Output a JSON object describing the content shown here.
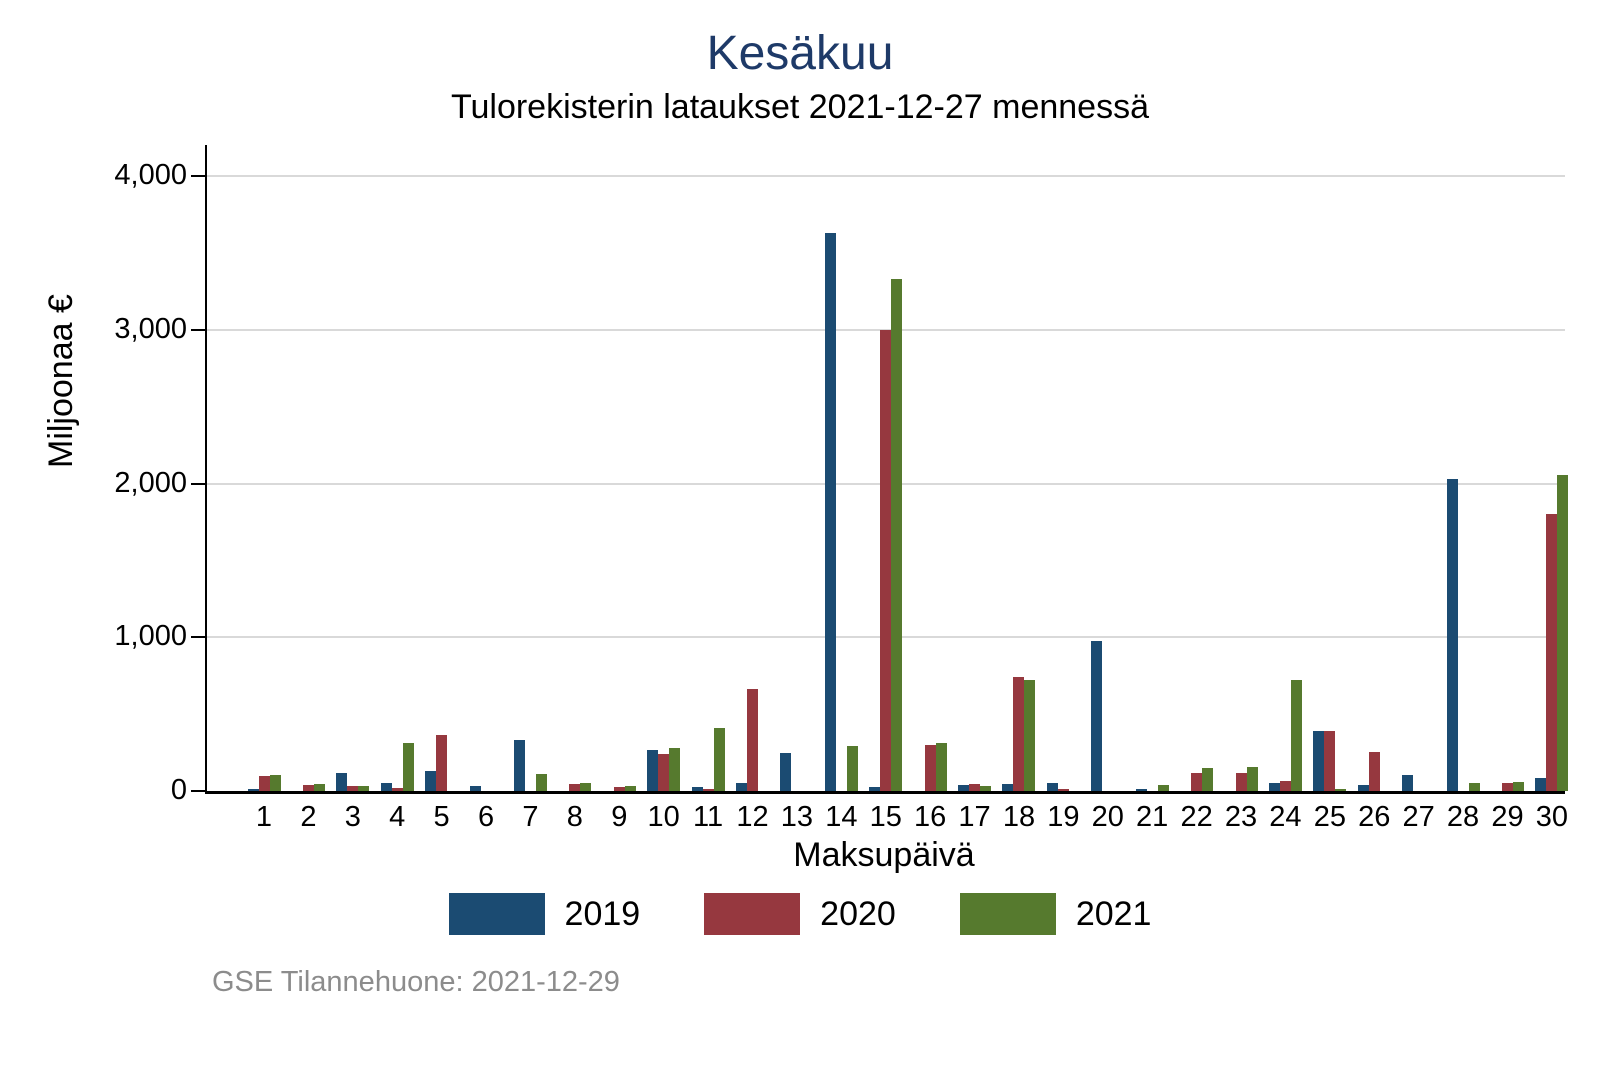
{
  "chart_data": {
    "type": "bar",
    "title": "Kesäkuu",
    "subtitle": "Tulorekisterin lataukset 2021-12-27 mennessä",
    "xlabel": "Maksupäivä",
    "ylabel": "Miljoonaa €",
    "ylim": [
      0,
      4000
    ],
    "grid": "horizontal",
    "legend_position": "bottom-center",
    "note": "GSE Tilannehuone: 2021-12-29",
    "yticks": [
      {
        "value": 0,
        "label": "0"
      },
      {
        "value": 1000,
        "label": "1,000"
      },
      {
        "value": 2000,
        "label": "2,000"
      },
      {
        "value": 3000,
        "label": "3,000"
      },
      {
        "value": 4000,
        "label": "4,000"
      }
    ],
    "categories": [
      "1",
      "2",
      "3",
      "4",
      "5",
      "6",
      "7",
      "8",
      "9",
      "10",
      "11",
      "12",
      "13",
      "14",
      "15",
      "16",
      "17",
      "18",
      "19",
      "20",
      "21",
      "22",
      "23",
      "24",
      "25",
      "26",
      "27",
      "28",
      "29",
      "30"
    ],
    "series": [
      {
        "name": "2019",
        "color": "#1b4b72",
        "values": [
          15,
          0,
          115,
          55,
          130,
          35,
          335,
          0,
          0,
          270,
          25,
          52,
          250,
          3630,
          28,
          0,
          40,
          48,
          50,
          975,
          5,
          0,
          0,
          52,
          390,
          40,
          105,
          2030,
          0,
          82
        ]
      },
      {
        "name": "2020",
        "color": "#96383f",
        "values": [
          100,
          40,
          30,
          20,
          365,
          0,
          0,
          45,
          25,
          240,
          12,
          665,
          0,
          0,
          3000,
          300,
          45,
          740,
          9,
          0,
          0,
          115,
          120,
          68,
          390,
          252,
          0,
          0,
          55,
          1800
        ]
      },
      {
        "name": "2021",
        "color": "#567a2e",
        "values": [
          105,
          45,
          33,
          315,
          0,
          0,
          110,
          55,
          35,
          280,
          410,
          0,
          0,
          290,
          3330,
          315,
          33,
          725,
          0,
          0,
          38,
          150,
          155,
          725,
          10,
          0,
          0,
          55,
          57,
          2055
        ]
      }
    ]
  },
  "colors": {
    "title": "#1e3a68",
    "note": "#8c8c8c",
    "axis": "#000000",
    "gridline": "#d9d9d9"
  }
}
